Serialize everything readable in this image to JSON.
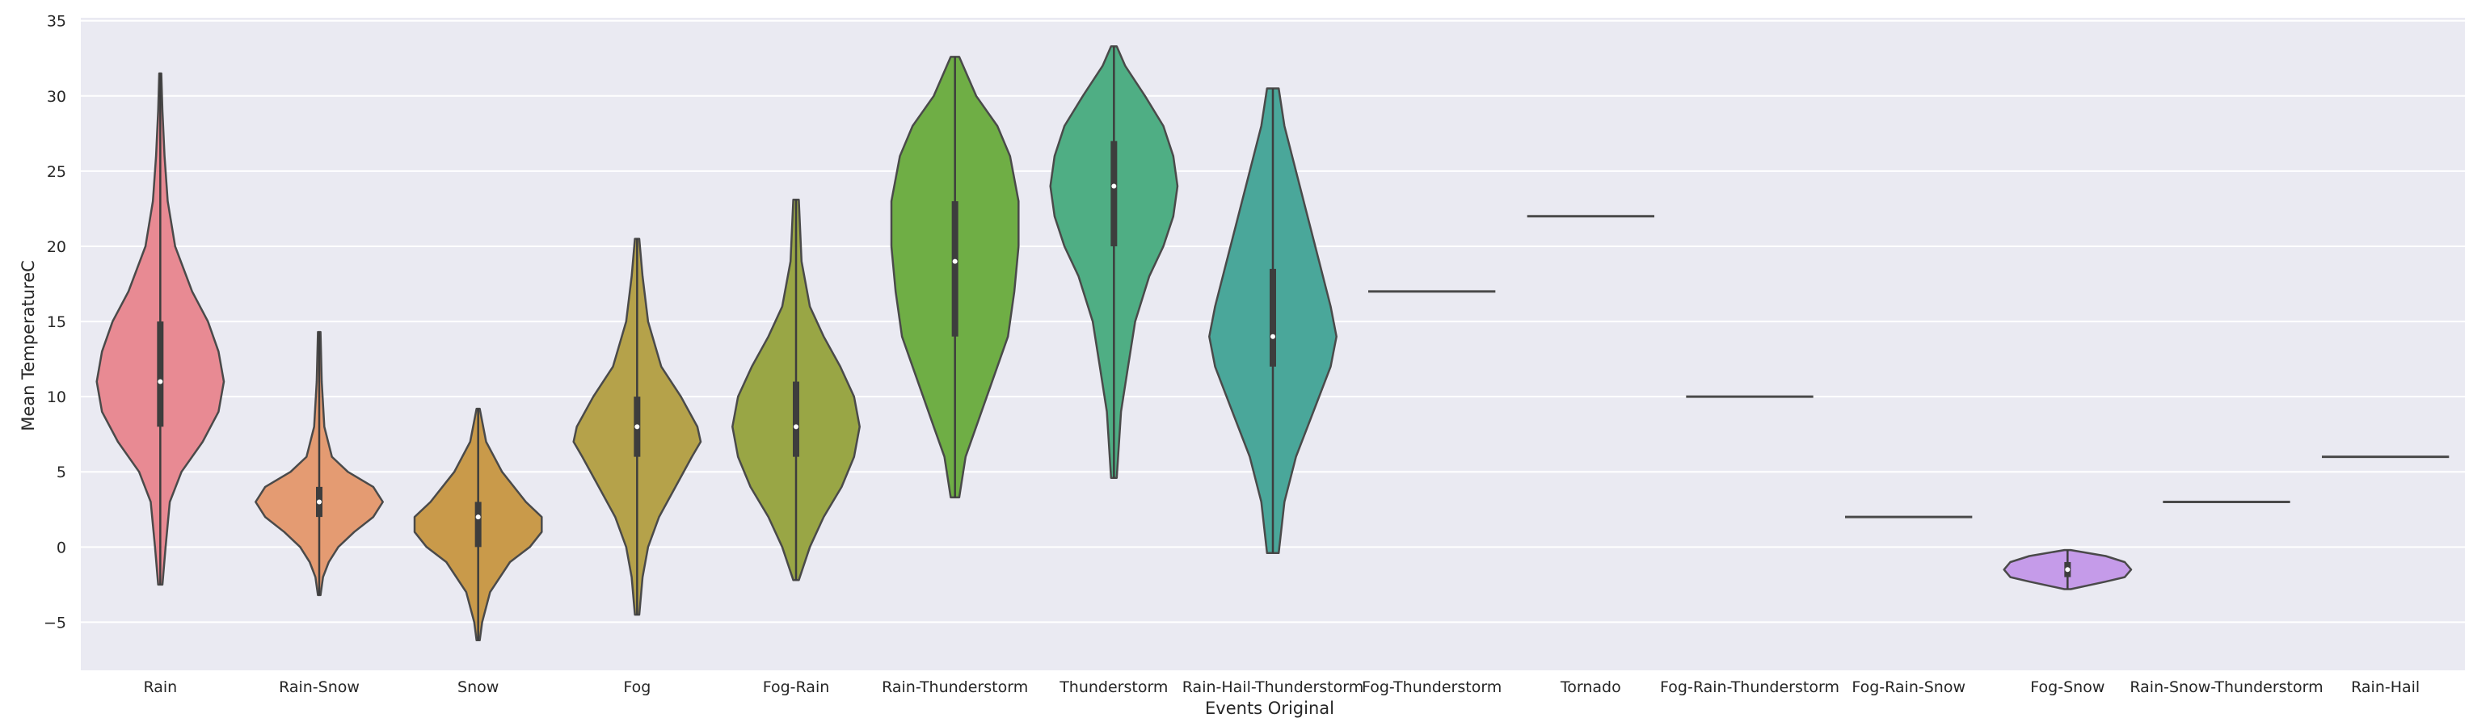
{
  "chart_data": {
    "type": "violin",
    "xlabel": "Events Original",
    "ylabel": "Mean TemperatureC",
    "ylim": [
      -8.2,
      35.2
    ],
    "yticks": [
      -5,
      0,
      5,
      10,
      15,
      20,
      25,
      30,
      35
    ],
    "grid": true,
    "background": "#eaeaf2",
    "categories": [
      "Rain",
      "Rain-Snow",
      "Snow",
      "Fog",
      "Fog-Rain",
      "Rain-Thunderstorm",
      "Thunderstorm",
      "Rain-Hail-Thunderstorm",
      "Fog-Thunderstorm",
      "Tornado",
      "Fog-Rain-Thunderstorm",
      "Fog-Rain-Snow",
      "Fog-Snow",
      "Rain-Snow-Thunderstorm",
      "Rain-Hail"
    ],
    "violins": [
      {
        "category": "Rain",
        "color": "#e88a93",
        "min": -2.5,
        "q1": 8,
        "median": 11,
        "q3": 15,
        "max": 31.5,
        "profile": [
          [
            -2.5,
            0.02
          ],
          [
            0,
            0.05
          ],
          [
            3,
            0.09
          ],
          [
            5,
            0.2
          ],
          [
            7,
            0.4
          ],
          [
            9,
            0.55
          ],
          [
            11,
            0.6
          ],
          [
            13,
            0.55
          ],
          [
            15,
            0.45
          ],
          [
            17,
            0.3
          ],
          [
            20,
            0.14
          ],
          [
            23,
            0.07
          ],
          [
            26,
            0.04
          ],
          [
            29,
            0.02
          ],
          [
            31.5,
            0.01
          ]
        ]
      },
      {
        "category": "Rain-Snow",
        "color": "#e49b72",
        "min": -3.2,
        "q1": 2,
        "median": 3,
        "q3": 4,
        "max": 14.3,
        "profile": [
          [
            -3.2,
            0.02
          ],
          [
            -2,
            0.06
          ],
          [
            -1,
            0.15
          ],
          [
            0,
            0.3
          ],
          [
            1,
            0.55
          ],
          [
            2,
            0.85
          ],
          [
            3,
            1.0
          ],
          [
            4,
            0.85
          ],
          [
            5,
            0.45
          ],
          [
            6,
            0.2
          ],
          [
            8,
            0.08
          ],
          [
            11,
            0.04
          ],
          [
            14.3,
            0.02
          ]
        ]
      },
      {
        "category": "Snow",
        "color": "#c99a4a",
        "min": -6.2,
        "q1": 0,
        "median": 2,
        "q3": 3,
        "max": 9.2,
        "profile": [
          [
            -6.2,
            0.02
          ],
          [
            -5,
            0.05
          ],
          [
            -3,
            0.15
          ],
          [
            -1,
            0.4
          ],
          [
            0,
            0.65
          ],
          [
            1,
            0.8
          ],
          [
            2,
            0.8
          ],
          [
            3,
            0.6
          ],
          [
            5,
            0.3
          ],
          [
            7,
            0.1
          ],
          [
            9.2,
            0.02
          ]
        ]
      },
      {
        "category": "Fog",
        "color": "#b5a24a",
        "min": -4.5,
        "q1": 6,
        "median": 8,
        "q3": 10,
        "max": 20.5,
        "profile": [
          [
            -4.5,
            0.02
          ],
          [
            -2,
            0.05
          ],
          [
            0,
            0.1
          ],
          [
            2,
            0.2
          ],
          [
            4,
            0.35
          ],
          [
            6,
            0.5
          ],
          [
            7,
            0.58
          ],
          [
            8,
            0.55
          ],
          [
            10,
            0.4
          ],
          [
            12,
            0.22
          ],
          [
            15,
            0.1
          ],
          [
            18,
            0.05
          ],
          [
            20.5,
            0.02
          ]
        ]
      },
      {
        "category": "Fog-Rain",
        "color": "#99a645",
        "min": -2.2,
        "q1": 6,
        "median": 8,
        "q3": 11,
        "max": 23.1,
        "profile": [
          [
            -2.2,
            0.02
          ],
          [
            0,
            0.1
          ],
          [
            2,
            0.2
          ],
          [
            4,
            0.33
          ],
          [
            6,
            0.42
          ],
          [
            8,
            0.46
          ],
          [
            10,
            0.42
          ],
          [
            12,
            0.32
          ],
          [
            14,
            0.2
          ],
          [
            16,
            0.1
          ],
          [
            19,
            0.04
          ],
          [
            23.1,
            0.02
          ]
        ]
      },
      {
        "category": "Rain-Thunderstorm",
        "color": "#6fae45",
        "min": 3.3,
        "q1": 14,
        "median": 19,
        "q3": 23,
        "max": 32.6,
        "profile": [
          [
            3.3,
            0.02
          ],
          [
            6,
            0.05
          ],
          [
            8,
            0.1
          ],
          [
            10,
            0.15
          ],
          [
            12,
            0.2
          ],
          [
            14,
            0.25
          ],
          [
            17,
            0.28
          ],
          [
            20,
            0.3
          ],
          [
            23,
            0.3
          ],
          [
            26,
            0.26
          ],
          [
            28,
            0.2
          ],
          [
            30,
            0.1
          ],
          [
            32.6,
            0.02
          ]
        ]
      },
      {
        "category": "Thunderstorm",
        "color": "#4fae84",
        "min": 4.6,
        "q1": 20,
        "median": 24,
        "q3": 27,
        "max": 33.3,
        "profile": [
          [
            4.6,
            0.02
          ],
          [
            9,
            0.05
          ],
          [
            12,
            0.1
          ],
          [
            15,
            0.15
          ],
          [
            18,
            0.25
          ],
          [
            20,
            0.35
          ],
          [
            22,
            0.42
          ],
          [
            24,
            0.45
          ],
          [
            26,
            0.42
          ],
          [
            28,
            0.35
          ],
          [
            30,
            0.22
          ],
          [
            32,
            0.08
          ],
          [
            33.3,
            0.02
          ]
        ]
      },
      {
        "category": "Rain-Hail-Thunderstorm",
        "color": "#4aa79a",
        "min": -0.4,
        "q1": 12,
        "median": 14,
        "q3": 18.5,
        "max": 30.5,
        "profile": [
          [
            -0.4,
            0.02
          ],
          [
            3,
            0.04
          ],
          [
            6,
            0.08
          ],
          [
            9,
            0.14
          ],
          [
            12,
            0.2
          ],
          [
            14,
            0.22
          ],
          [
            16,
            0.2
          ],
          [
            19,
            0.16
          ],
          [
            22,
            0.12
          ],
          [
            25,
            0.08
          ],
          [
            28,
            0.04
          ],
          [
            30.5,
            0.02
          ]
        ]
      },
      {
        "category": "Fog-Thunderstorm",
        "color": "#4ca3b0",
        "value": 17
      },
      {
        "category": "Tornado",
        "color": "#52a2c9",
        "value": 22
      },
      {
        "category": "Fog-Rain-Thunderstorm",
        "color": "#6b9ee2",
        "value": 10
      },
      {
        "category": "Fog-Rain-Snow",
        "color": "#a397e8",
        "value": 2
      },
      {
        "category": "Fog-Snow",
        "color": "#c59be9",
        "min": -2.8,
        "q1": -2,
        "median": -1.5,
        "q3": -1,
        "max": -0.2,
        "profile": [
          [
            -2.8,
            0.05
          ],
          [
            -2.3,
            0.6
          ],
          [
            -2,
            0.9
          ],
          [
            -1.5,
            1.0
          ],
          [
            -1,
            0.9
          ],
          [
            -0.6,
            0.6
          ],
          [
            -0.2,
            0.05
          ]
        ]
      },
      {
        "category": "Rain-Snow-Thunderstorm",
        "color": "#e392d9",
        "value": 3
      },
      {
        "category": "Rain-Hail",
        "color": "#ea8fbf",
        "value": 6
      }
    ]
  }
}
